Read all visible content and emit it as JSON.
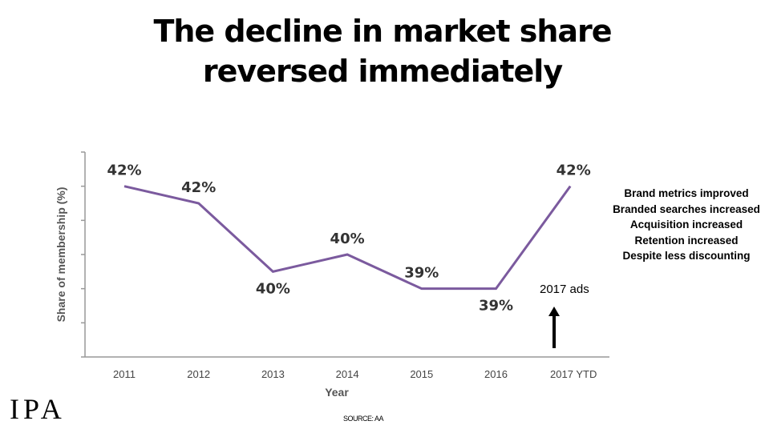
{
  "title_line1": "The decline in market share",
  "title_line2": "reversed immediately",
  "chart_data": {
    "type": "line",
    "title": "The decline in market share reversed immediately",
    "xlabel": "Year",
    "ylabel": "Share of membership (%)",
    "categories": [
      "2011",
      "2012",
      "2013",
      "2014",
      "2015",
      "2016",
      "2017 YTD"
    ],
    "values": [
      42,
      41.5,
      39.5,
      40,
      39,
      39,
      42
    ],
    "data_labels": [
      "42%",
      "42%",
      "40%",
      "40%",
      "39%",
      "39%",
      "42%"
    ],
    "ylim": [
      37,
      43
    ],
    "ytick_labels_shown": false,
    "line_color": "#7b5a9e",
    "grid": false
  },
  "annotation": "2017 ads",
  "notes": [
    "Brand metrics improved",
    "Branded searches increased",
    "Acquisition increased",
    "Retention increased",
    "Despite less discounting"
  ],
  "source": "SOURCE: AA",
  "logo": "IPA"
}
